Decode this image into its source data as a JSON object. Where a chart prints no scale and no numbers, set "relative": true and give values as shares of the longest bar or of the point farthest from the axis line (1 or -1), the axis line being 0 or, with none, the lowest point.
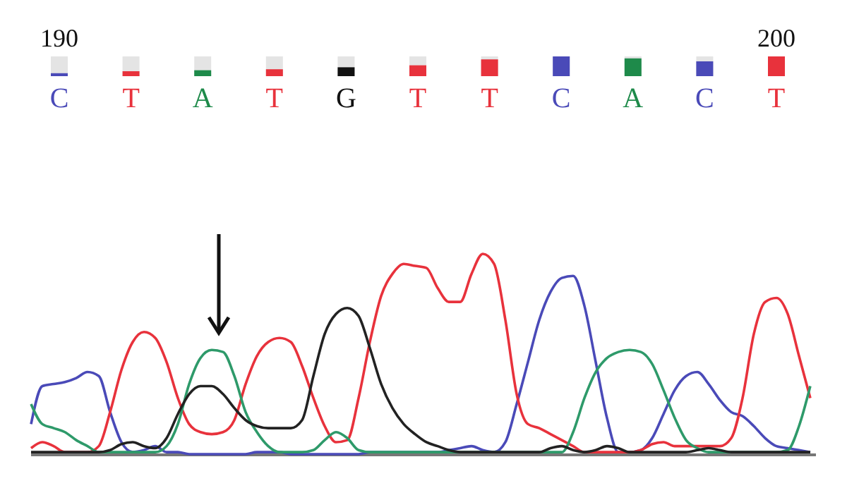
{
  "chart_data": [
    {
      "type": "bar",
      "relative": true,
      "categories": [
        "C",
        "T",
        "A",
        "T",
        "G",
        "T",
        "T",
        "C",
        "A",
        "C",
        "T"
      ],
      "values": [
        0.15,
        0.25,
        0.3,
        0.35,
        0.45,
        0.55,
        0.85,
        1,
        0.9,
        0.75,
        1
      ],
      "colors": [
        "#4a4ab8",
        "#e8323c",
        "#1e8a4a",
        "#e8323c",
        "#111111",
        "#e8323c",
        "#e8323c",
        "#4a4ab8",
        "#1e8a4a",
        "#4a4ab8",
        "#e8323c"
      ],
      "annotations": [
        "190",
        "200"
      ]
    },
    {
      "type": "line",
      "relative": true,
      "tick_labels": false,
      "categories": [
        null,
        null,
        null,
        null,
        null,
        null,
        null,
        null,
        null,
        null,
        null,
        null,
        null,
        null,
        null,
        null,
        null,
        null,
        null,
        null,
        null,
        null,
        null,
        null,
        null,
        null,
        null,
        null,
        null,
        null,
        null,
        null,
        null,
        null,
        null,
        null,
        null,
        null,
        null,
        null,
        null,
        null,
        null,
        null,
        null,
        null,
        null,
        null,
        null,
        null,
        null,
        null,
        null,
        null,
        null,
        null,
        null,
        null,
        null,
        null,
        null,
        null,
        null,
        null,
        null,
        null,
        null,
        null,
        null,
        null
      ],
      "series": [
        {
          "color": "#4a4ab8",
          "values": [
            0.15,
            0.34,
            0.35,
            0.36,
            0.38,
            0.41,
            0.39,
            0.21,
            0.06,
            0.01,
            0.02,
            0.04,
            0.01,
            0.01,
            0,
            0,
            0,
            0,
            0,
            0,
            0.01,
            0.01,
            0.01,
            0,
            0,
            0,
            0,
            0,
            0,
            0,
            0.01,
            0.01,
            0.01,
            0.01,
            0.01,
            0.01,
            0.01,
            0.02,
            0.03,
            0.04,
            0.02,
            0.01,
            0.06,
            0.25,
            0.46,
            0.67,
            0.81,
            0.88,
            0.89,
            0.74,
            0.46,
            0.18,
            0.01,
            0.01,
            0.02,
            0.08,
            0.2,
            0.32,
            0.39,
            0.41,
            0.35,
            0.27,
            0.21,
            0.19,
            0.14,
            0.08,
            0.04,
            0.03,
            0.02,
            0.01
          ]
        },
        {
          "color": "#e8323c",
          "values": [
            0.03,
            0.06,
            0.04,
            0.01,
            0.01,
            0.01,
            0.04,
            0.21,
            0.42,
            0.56,
            0.61,
            0.58,
            0.46,
            0.28,
            0.15,
            0.11,
            0.1,
            0.11,
            0.17,
            0.35,
            0.49,
            0.56,
            0.58,
            0.56,
            0.44,
            0.28,
            0.14,
            0.06,
            0.07,
            0.28,
            0.56,
            0.79,
            0.9,
            0.95,
            0.94,
            0.93,
            0.83,
            0.76,
            0.76,
            0.9,
            1,
            0.95,
            0.67,
            0.3,
            0.15,
            0.13,
            0.1,
            0.07,
            0.04,
            0.01,
            0.01,
            0.01,
            0.01,
            0.01,
            0.02,
            0.05,
            0.06,
            0.04,
            0.04,
            0.04,
            0.04,
            0.04,
            0.08,
            0.28,
            0.6,
            0.76,
            0.78,
            0.7,
            0.49,
            0.28
          ]
        },
        {
          "color": "#2e9a6a",
          "values": [
            0.25,
            0.15,
            0.13,
            0.11,
            0.07,
            0.04,
            0.01,
            0.01,
            0.01,
            0.01,
            0.01,
            0.01,
            0.04,
            0.15,
            0.35,
            0.48,
            0.52,
            0.51,
            0.39,
            0.21,
            0.11,
            0.04,
            0.01,
            0.01,
            0.01,
            0.02,
            0.07,
            0.11,
            0.08,
            0.02,
            0.01,
            0.01,
            0.01,
            0.01,
            0.01,
            0.01,
            0.01,
            0.01,
            0.01,
            0.01,
            0.01,
            0.01,
            0.01,
            0.01,
            0.01,
            0.01,
            0.01,
            0.01,
            0.11,
            0.28,
            0.41,
            0.48,
            0.51,
            0.52,
            0.51,
            0.45,
            0.32,
            0.18,
            0.07,
            0.03,
            0.01,
            0.01,
            0.01,
            0.01,
            0.01,
            0.01,
            0.01,
            0.02,
            0.14,
            0.34
          ]
        },
        {
          "color": "#222222",
          "values": [
            0.01,
            0.01,
            0.01,
            0.01,
            0.01,
            0.01,
            0.01,
            0.02,
            0.05,
            0.06,
            0.04,
            0.03,
            0.08,
            0.2,
            0.3,
            0.34,
            0.34,
            0.3,
            0.23,
            0.17,
            0.14,
            0.13,
            0.13,
            0.13,
            0.17,
            0.39,
            0.6,
            0.7,
            0.73,
            0.69,
            0.53,
            0.35,
            0.23,
            0.15,
            0.1,
            0.06,
            0.04,
            0.02,
            0.01,
            0.01,
            0.01,
            0.01,
            0.01,
            0.01,
            0.01,
            0.01,
            0.03,
            0.04,
            0.02,
            0.01,
            0.02,
            0.04,
            0.03,
            0.01,
            0.01,
            0.01,
            0.01,
            0.01,
            0.01,
            0.02,
            0.03,
            0.02,
            0.01,
            0.01,
            0.01,
            0.01,
            0.01,
            0.01,
            0.01,
            0.01
          ]
        }
      ]
    }
  ]
}
